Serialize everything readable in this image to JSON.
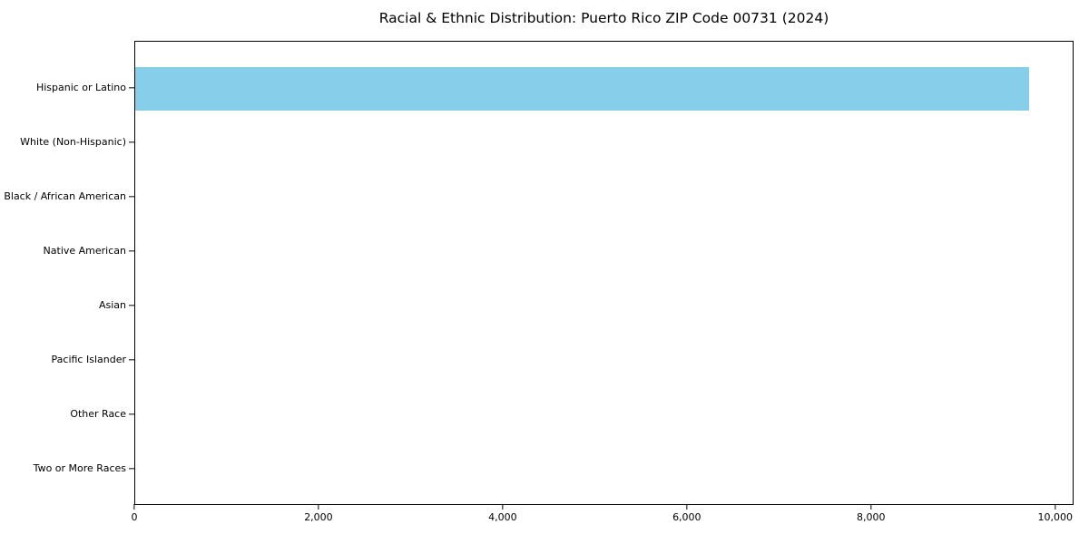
{
  "title": "Racial & Ethnic Distribution: Puerto Rico ZIP Code 00731 (2024)",
  "colors": {
    "bar": "#87CEEB",
    "axis": "#000000",
    "background": "#FFFFFF"
  },
  "chart_data": {
    "type": "bar",
    "orientation": "horizontal",
    "title": "Racial & Ethnic Distribution: Puerto Rico ZIP Code 00731 (2024)",
    "categories": [
      "Hispanic or Latino",
      "White (Non-Hispanic)",
      "Black / African American",
      "Native American",
      "Asian",
      "Pacific Islander",
      "Other Race",
      "Two or More Races"
    ],
    "values": [
      9730,
      0,
      0,
      0,
      0,
      0,
      0,
      0
    ],
    "bar_color": "#87CEEB",
    "xlabel": "",
    "ylabel": "",
    "xlim": [
      0,
      10200
    ],
    "x_ticks": [
      0,
      2000,
      4000,
      6000,
      8000,
      10000
    ],
    "x_tick_labels": [
      "0",
      "2,000",
      "4,000",
      "6,000",
      "8,000",
      "10,000"
    ],
    "grid": false,
    "legend": null
  }
}
